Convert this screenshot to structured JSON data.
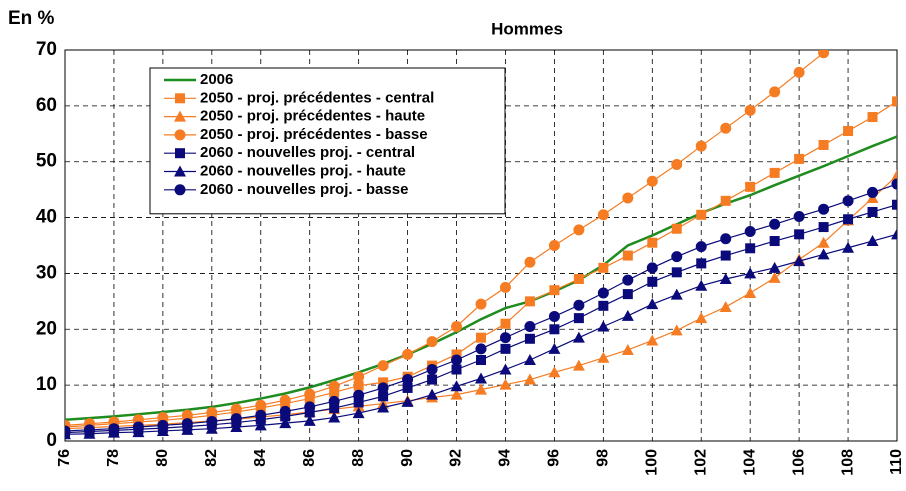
{
  "chart_data": {
    "type": "line",
    "title": "Hommes",
    "y_label": "En %",
    "x": [
      76,
      77,
      78,
      79,
      80,
      81,
      82,
      83,
      84,
      85,
      86,
      87,
      88,
      89,
      90,
      91,
      92,
      93,
      94,
      95,
      96,
      97,
      98,
      99,
      100,
      101,
      102,
      103,
      104,
      105,
      106,
      107,
      108,
      109,
      110
    ],
    "xlim": [
      76,
      110
    ],
    "xticks": [
      76,
      78,
      80,
      82,
      84,
      86,
      88,
      90,
      92,
      94,
      96,
      98,
      100,
      102,
      104,
      106,
      108,
      110
    ],
    "ylim": [
      0,
      70
    ],
    "yticks": [
      0,
      10,
      20,
      30,
      40,
      50,
      60,
      70
    ],
    "grid": true,
    "legend": "upper-left",
    "series": [
      {
        "name": "2006",
        "color": "#1e8c1e",
        "marker": "none",
        "values": [
          3.8,
          4.1,
          4.4,
          4.8,
          5.2,
          5.6,
          6.1,
          6.8,
          7.6,
          8.5,
          9.6,
          10.9,
          12.3,
          13.8,
          15.5,
          17.4,
          19.5,
          21.8,
          23.8,
          25,
          26.8,
          28.8,
          31.5,
          35,
          36.8,
          38.8,
          40.8,
          42.5,
          44,
          45.8,
          47.5,
          49.2,
          51,
          52.8,
          54.5
        ]
      },
      {
        "name": "2050 - proj. précédentes - central",
        "color": "#f57c22",
        "marker": "square",
        "values": [
          2.5,
          2.8,
          3.1,
          3.4,
          3.7,
          4.1,
          4.6,
          5.2,
          5.9,
          6.7,
          7.6,
          8.7,
          9.9,
          10.5,
          11.5,
          13.5,
          15.5,
          18.5,
          21,
          25,
          27,
          29,
          31,
          33.2,
          35.5,
          38,
          40.5,
          43,
          45.5,
          48,
          50.5,
          53,
          55.5,
          58,
          60.8
        ]
      },
      {
        "name": "2050 - proj. précédentes - haute",
        "color": "#f57c22",
        "marker": "triangle",
        "values": [
          2.2,
          2.4,
          2.6,
          2.8,
          3.0,
          3.3,
          3.6,
          3.9,
          4.3,
          4.7,
          5.2,
          5.7,
          6.2,
          6.7,
          7.2,
          7.8,
          8.3,
          9.2,
          10.1,
          11,
          12.3,
          13.5,
          14.9,
          16.3,
          18,
          19.8,
          22,
          24,
          26.5,
          29.2,
          32.5,
          35.5,
          39.5,
          43.5,
          47.5
        ]
      },
      {
        "name": "2050 - proj. précédentes - basse",
        "color": "#f57c22",
        "marker": "circle",
        "values": [
          2.8,
          3.1,
          3.4,
          3.8,
          4.2,
          4.6,
          5.1,
          5.7,
          6.4,
          7.3,
          8.4,
          9.8,
          11.5,
          13.5,
          15.5,
          17.8,
          20.5,
          24.5,
          27.5,
          32,
          35,
          37.8,
          40.5,
          43.5,
          46.5,
          49.5,
          52.8,
          56,
          59.2,
          62.5,
          66,
          69.5,
          73,
          null,
          null
        ]
      },
      {
        "name": "2060 - nouvelles proj. - central",
        "color": "#0a0a7a",
        "marker": "square",
        "values": [
          1.5,
          1.7,
          1.9,
          2.1,
          2.3,
          2.6,
          2.9,
          3.3,
          3.8,
          4.4,
          5.1,
          5.9,
          6.9,
          8,
          9.5,
          11,
          12.8,
          14.5,
          16.5,
          18.3,
          20,
          22,
          24.2,
          26.3,
          28.5,
          30.2,
          31.8,
          33.2,
          34.5,
          35.8,
          37,
          38.3,
          39.7,
          41,
          42.3
        ]
      },
      {
        "name": "2060 - nouvelles proj. - haute",
        "color": "#0a0a7a",
        "marker": "triangle",
        "values": [
          1.2,
          1.3,
          1.5,
          1.6,
          1.8,
          2.0,
          2.2,
          2.5,
          2.8,
          3.2,
          3.6,
          4.2,
          5,
          6,
          7,
          8.3,
          9.8,
          11.2,
          12.8,
          14.5,
          16.5,
          18.5,
          20.5,
          22.4,
          24.5,
          26.2,
          27.8,
          29,
          30,
          31,
          32.2,
          33.4,
          34.6,
          35.8,
          37
        ]
      },
      {
        "name": "2060 - nouvelles proj. -  basse",
        "color": "#0a0a7a",
        "marker": "circle",
        "values": [
          1.8,
          2.0,
          2.2,
          2.5,
          2.8,
          3.1,
          3.5,
          4,
          4.6,
          5.3,
          6.1,
          7.1,
          8.2,
          9.5,
          11,
          12.8,
          14.5,
          16.5,
          18.5,
          20.5,
          22.3,
          24.3,
          26.5,
          28.8,
          31,
          33,
          34.8,
          36.2,
          37.5,
          38.8,
          40.2,
          41.5,
          43,
          44.5,
          46
        ]
      }
    ]
  }
}
